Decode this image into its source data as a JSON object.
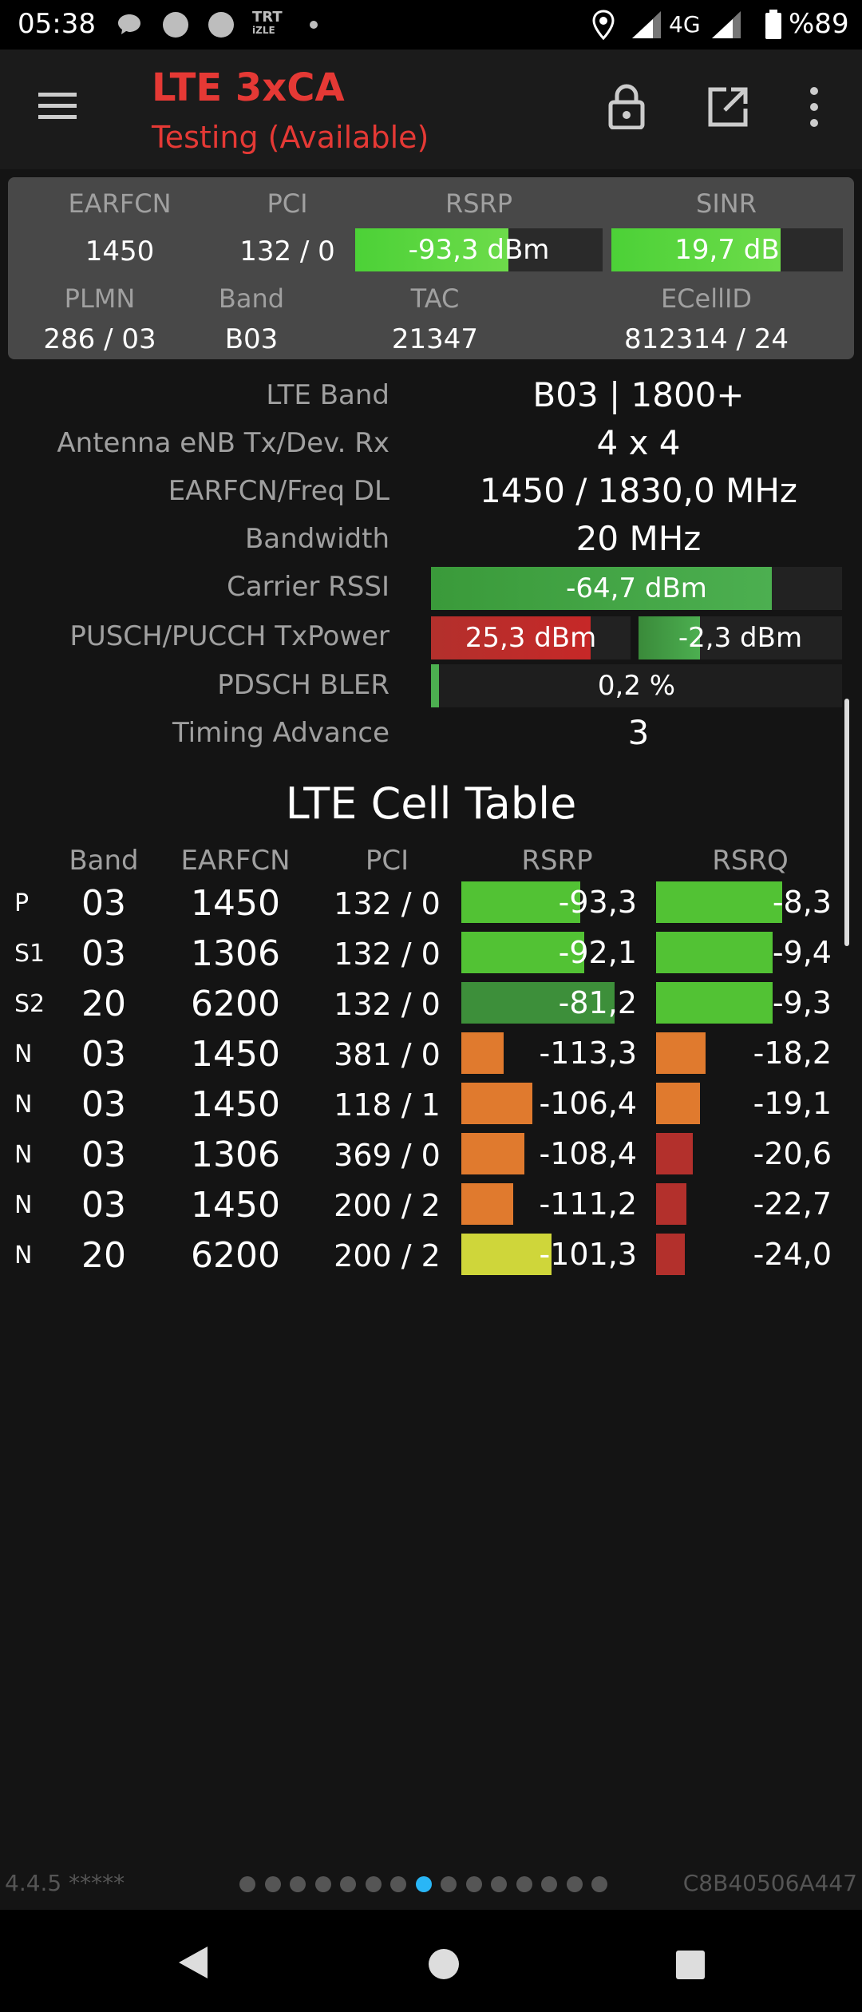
{
  "status_bar": {
    "time": "05:38",
    "trt_top": "TRT",
    "trt_bottom": "iZLE",
    "network": "4G",
    "battery": "%89",
    "icons": [
      "message-icon",
      "circle-icon",
      "circle-icon",
      "trt-izle-icon",
      "dot-icon",
      "location-icon",
      "signal-icon",
      "signal-icon",
      "battery-icon"
    ]
  },
  "app_bar": {
    "title": "LTE 3xCA",
    "subtitle": "Testing (Available)",
    "icons": [
      "menu-icon",
      "lock-icon",
      "open-external-icon",
      "more-vert-icon"
    ]
  },
  "summary": {
    "headers_row1": {
      "earfcn": "EARFCN",
      "pci": "PCI",
      "rsrp": "RSRP",
      "sinr": "SINR"
    },
    "values_row1": {
      "earfcn": "1450",
      "pci": "132 / 0",
      "rsrp": "-93,3 dBm",
      "sinr": "19,7 dB"
    },
    "headers_row2": {
      "plmn": "PLMN",
      "band": "Band",
      "tac": "TAC",
      "ecellid": "ECellID"
    },
    "values_row2": {
      "plmn": "286 / 03",
      "band": "B03",
      "tac": "21347",
      "ecellid": "812314 / 24"
    },
    "rsrp_level": 0.62,
    "sinr_level": 0.73
  },
  "info": {
    "lte_band": {
      "label": "LTE Band",
      "value": "B03 | 1800+"
    },
    "antenna": {
      "label": "Antenna eNB Tx/Dev. Rx",
      "value": "4 x 4"
    },
    "earfcn_freq": {
      "label": "EARFCN/Freq DL",
      "value": "1450 / 1830,0 MHz"
    },
    "bandwidth": {
      "label": "Bandwidth",
      "value": "20 MHz"
    },
    "carrier_rssi": {
      "label": "Carrier RSSI",
      "value": "-64,7 dBm",
      "level": 0.83
    },
    "txpower": {
      "label": "PUSCH/PUCCH TxPower",
      "pusch": "25,3 dBm",
      "pucch": "-2,3 dBm",
      "pusch_level": 0.8,
      "pucch_level": 0.3
    },
    "bler": {
      "label": "PDSCH BLER",
      "value": "0,2 %",
      "level": 0.02
    },
    "timing_advance": {
      "label": "Timing Advance",
      "value": "3"
    }
  },
  "cell_table": {
    "title": "LTE Cell Table",
    "headers": [
      "Band",
      "EARFCN",
      "PCI",
      "RSRP",
      "RSRQ"
    ],
    "rows": [
      {
        "type": "P",
        "band": "03",
        "earfcn": "1450",
        "pci": "132 / 0",
        "rsrp": "-93,3",
        "rsrq": "-8,3",
        "rsrp_level": 0.62,
        "rsrq_level": 0.66,
        "rsrp_color": "#52c234",
        "rsrq_color": "#52c234"
      },
      {
        "type": "S1",
        "band": "03",
        "earfcn": "1306",
        "pci": "132 / 0",
        "rsrp": "-92,1",
        "rsrq": "-9,4",
        "rsrp_level": 0.64,
        "rsrq_level": 0.61,
        "rsrp_color": "#52c234",
        "rsrq_color": "#52c234"
      },
      {
        "type": "S2",
        "band": "20",
        "earfcn": "6200",
        "pci": "132 / 0",
        "rsrp": "-81,2",
        "rsrq": "-9,3",
        "rsrp_level": 0.8,
        "rsrq_level": 0.61,
        "rsrp_color": "#3d8f3a",
        "rsrq_color": "#52c234"
      },
      {
        "type": "N",
        "band": "03",
        "earfcn": "1450",
        "pci": "381 / 0",
        "rsrp": "-113,3",
        "rsrq": "-18,2",
        "rsrp_level": 0.22,
        "rsrq_level": 0.26,
        "rsrp_color": "#e07a2e",
        "rsrq_color": "#e07a2e"
      },
      {
        "type": "N",
        "band": "03",
        "earfcn": "1450",
        "pci": "118 / 1",
        "rsrp": "-106,4",
        "rsrq": "-19,1",
        "rsrp_level": 0.37,
        "rsrq_level": 0.23,
        "rsrp_color": "#e07a2e",
        "rsrq_color": "#e07a2e"
      },
      {
        "type": "N",
        "band": "03",
        "earfcn": "1306",
        "pci": "369 / 0",
        "rsrp": "-108,4",
        "rsrq": "-20,6",
        "rsrp_level": 0.33,
        "rsrq_level": 0.19,
        "rsrp_color": "#e07a2e",
        "rsrq_color": "#b3302c"
      },
      {
        "type": "N",
        "band": "03",
        "earfcn": "1450",
        "pci": "200 / 2",
        "rsrp": "-111,2",
        "rsrq": "-22,7",
        "rsrp_level": 0.27,
        "rsrq_level": 0.16,
        "rsrp_color": "#e07a2e",
        "rsrq_color": "#b3302c"
      },
      {
        "type": "N",
        "band": "20",
        "earfcn": "6200",
        "pci": "200 / 2",
        "rsrp": "-101,3",
        "rsrq": "-24,0",
        "rsrp_level": 0.47,
        "rsrq_level": 0.15,
        "rsrp_color": "#cfd63a",
        "rsrq_color": "#b3302c"
      }
    ]
  },
  "footer": {
    "version": "4.4.5 *****",
    "cell_id": "C8B40506A447",
    "page_dots": 15,
    "active_dot": 7
  },
  "colors": {
    "accent_red": "#e53935",
    "bar_green": "#52c234",
    "bar_dark_green": "#3d8f3a",
    "bar_red": "#b3302c",
    "bar_orange": "#e07a2e",
    "dot_active": "#29b6f6"
  }
}
